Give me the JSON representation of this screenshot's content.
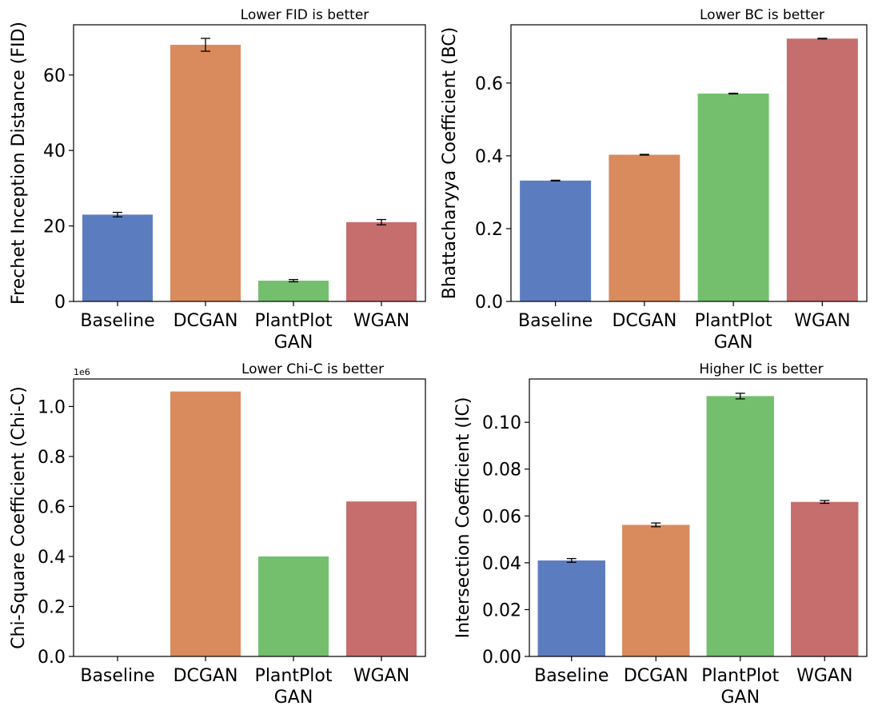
{
  "chart_data": [
    {
      "type": "bar",
      "title": "Lower FID is better",
      "ylabel": "Frechet Inception Distance (FID)",
      "xlabel": "",
      "categories": [
        "Baseline",
        "DCGAN",
        "PlantPlot\nGAN",
        "WGAN"
      ],
      "values": [
        23.0,
        68.0,
        5.5,
        21.0
      ],
      "errors": [
        0.6,
        1.7,
        0.3,
        0.7
      ],
      "ylim": [
        0,
        73.3
      ],
      "yticks": [
        0,
        20,
        40,
        60
      ],
      "ytick_labels": [
        "0",
        "20",
        "40",
        "60"
      ],
      "offset_label": "",
      "colors": [
        "#5b7dc0",
        "#d98b5e",
        "#73bf6e",
        "#c66d6d"
      ]
    },
    {
      "type": "bar",
      "title": "Lower BC is better",
      "ylabel": "Bhattacharyya Coefficient (BC)",
      "xlabel": "",
      "categories": [
        "Baseline",
        "DCGAN",
        "PlantPlot\nGAN",
        "WGAN"
      ],
      "values": [
        0.332,
        0.403,
        0.571,
        0.722
      ],
      "errors": [
        0.001,
        0.001,
        0.001,
        0.001
      ],
      "ylim": [
        0,
        0.76
      ],
      "yticks": [
        0,
        0.2,
        0.4,
        0.6
      ],
      "ytick_labels": [
        "0.0",
        "0.2",
        "0.4",
        "0.6"
      ],
      "offset_label": "",
      "colors": [
        "#5b7dc0",
        "#d98b5e",
        "#73bf6e",
        "#c66d6d"
      ]
    },
    {
      "type": "bar",
      "title": "Lower Chi-C is better",
      "ylabel": "Chi-Square Coefficient (Chi-C)",
      "xlabel": "",
      "categories": [
        "Baseline",
        "DCGAN",
        "PlantPlot\nGAN",
        "WGAN"
      ],
      "values": [
        0.0,
        1.06,
        0.4,
        0.62
      ],
      "errors": [
        0,
        0,
        0,
        0
      ],
      "ylim": [
        0,
        1.11
      ],
      "yticks": [
        0,
        0.2,
        0.4,
        0.6,
        0.8,
        1.0
      ],
      "ytick_labels": [
        "0.0",
        "0.2",
        "0.4",
        "0.6",
        "0.8",
        "1.0"
      ],
      "offset_label": "1e6",
      "colors": [
        "#5b7dc0",
        "#d98b5e",
        "#73bf6e",
        "#c66d6d"
      ]
    },
    {
      "type": "bar",
      "title": "Higher IC is better",
      "ylabel": "Intersection Coefficient (IC)",
      "xlabel": "",
      "categories": [
        "Baseline",
        "DCGAN",
        "PlantPlot\nGAN",
        "WGAN"
      ],
      "values": [
        0.041,
        0.0562,
        0.1112,
        0.066
      ],
      "errors": [
        0.0008,
        0.0008,
        0.0012,
        0.0006
      ],
      "ylim": [
        0,
        0.1185
      ],
      "yticks": [
        0,
        0.02,
        0.04,
        0.06,
        0.08,
        0.1
      ],
      "ytick_labels": [
        "0.00",
        "0.02",
        "0.04",
        "0.06",
        "0.08",
        "0.10"
      ],
      "offset_label": "",
      "colors": [
        "#5b7dc0",
        "#d98b5e",
        "#73bf6e",
        "#c66d6d"
      ]
    }
  ]
}
